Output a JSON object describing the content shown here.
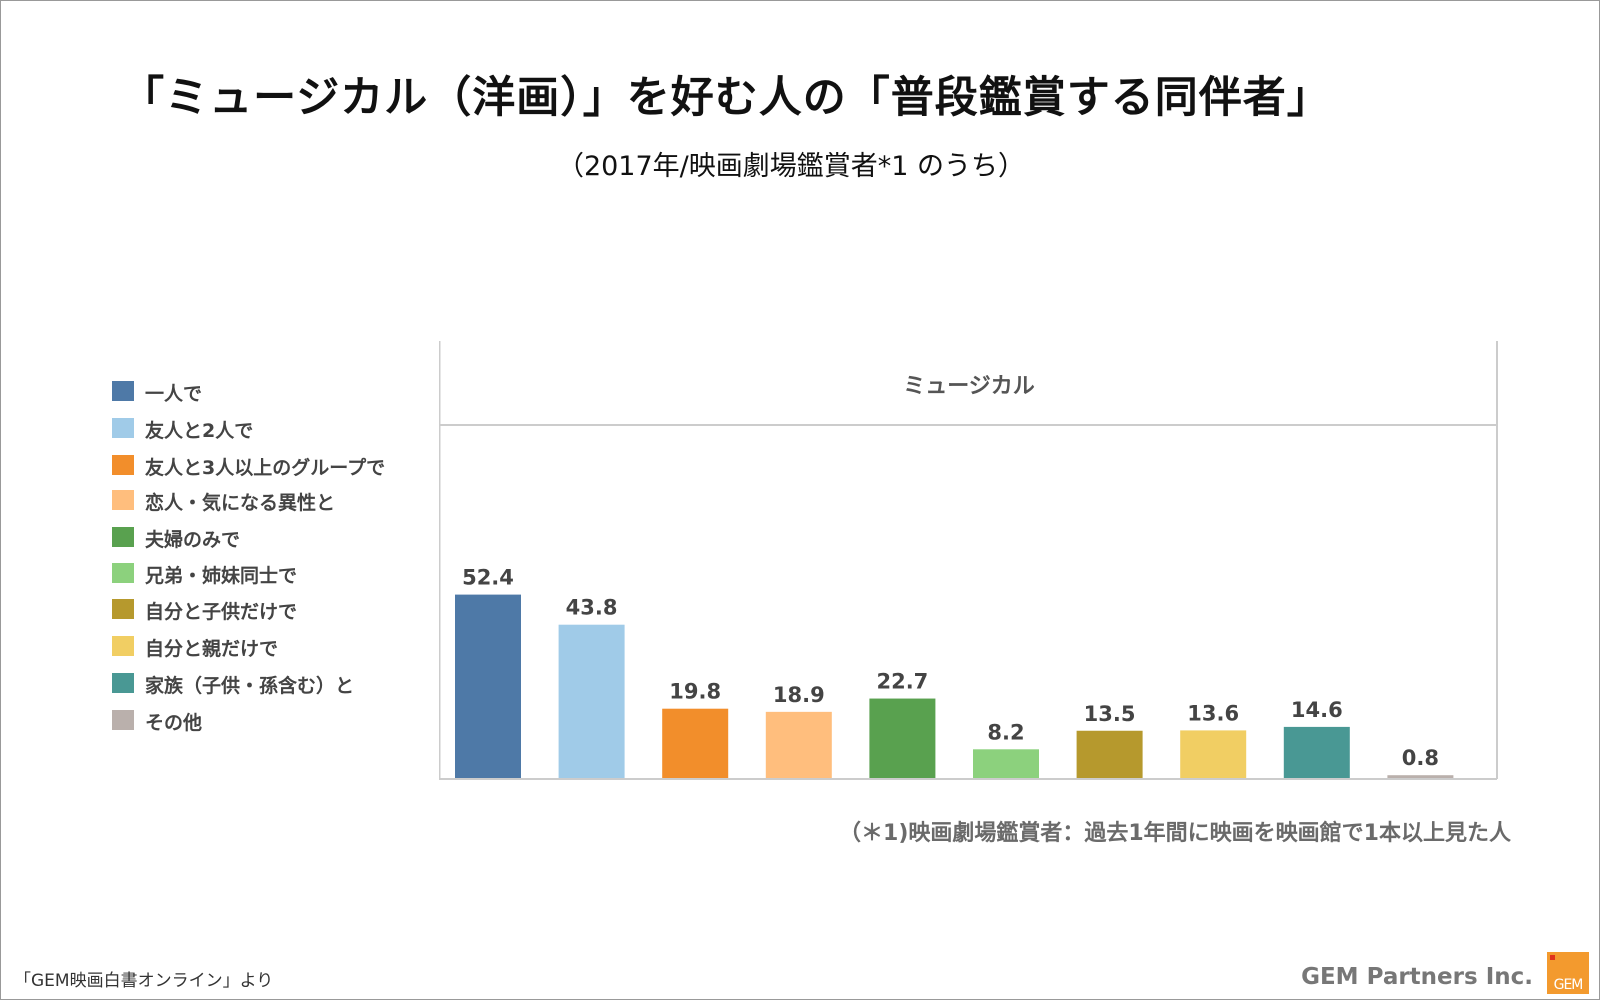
{
  "title": "「ミュージカル（洋画）」を好む人の「普段鑑賞する同伴者」",
  "subtitle": "（2017年/映画劇場鑑賞者*1 のうち）",
  "note": "（＊1)映画劇場鑑賞者：過去1年間に映画を映画館で1本以上見た人",
  "source": "「GEM映画白書オンライン」より",
  "brand": "GEM Partners Inc.",
  "logo_text": "GEM",
  "colors": {
    "logo": "#f39a2e",
    "axis": "#cccccc",
    "value_label": "#444444"
  },
  "chart_data": {
    "type": "bar",
    "panel_title": "ミュージカル",
    "categories": [
      "一人で",
      "友人と2人で",
      "友人と3人以上のグループで",
      "恋人・気になる異性と",
      "夫婦のみで",
      "兄弟・姉妹同士で",
      "自分と子供だけで",
      "自分と親だけで",
      "家族（子供・孫含む）と",
      "その他"
    ],
    "values": [
      52.4,
      43.8,
      19.8,
      18.9,
      22.7,
      8.2,
      13.5,
      13.6,
      14.6,
      0.8
    ],
    "value_labels": [
      "52.4",
      "43.8",
      "19.8",
      "18.9",
      "22.7",
      "8.2",
      "13.5",
      "13.6",
      "14.6",
      "0.8"
    ],
    "colors": [
      "#4e79a7",
      "#a0cbe8",
      "#f28e2b",
      "#ffbe7d",
      "#59a14f",
      "#8cd17d",
      "#b6992d",
      "#f1ce63",
      "#499894",
      "#bab0ac"
    ],
    "ylim": [
      0,
      60
    ],
    "grid": false,
    "legend": "left",
    "xlabel": "",
    "ylabel": ""
  }
}
